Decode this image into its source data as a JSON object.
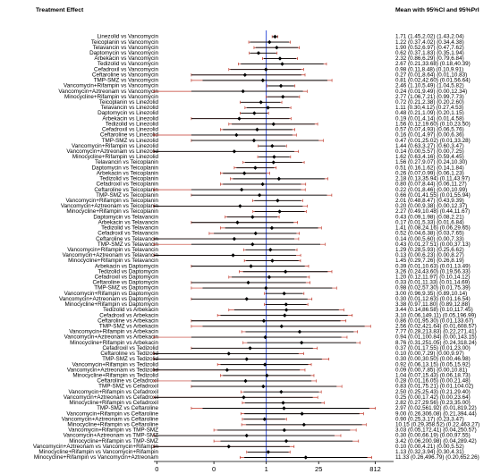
{
  "chart_data": {
    "type": "forest",
    "title": "Treatment Effect",
    "value_header": "Mean with 95%CI and 95%PrI",
    "log_scale": true,
    "xlim": [
      0.001,
      2500
    ],
    "xticks": [
      {
        "value": 0.0012,
        "label": "0"
      },
      {
        "value": 0.04,
        "label": "0"
      },
      1,
      25,
      812
    ],
    "reference": 1,
    "ci_color": "#000000",
    "pri_color": "#c0392b",
    "reference_color": "#1f3fd6",
    "categories": [
      "Linezolid vs Vancomycin",
      "Teicoplanin vs Vancomycin",
      "Telavancin vs Vancomycin",
      "Daptomycin vs Vancomycin",
      "Arbekacin vs Vancomycin",
      "Tedizolid vs Vancomycin",
      "Cefadroxil vs Vancomycin",
      "Ceftaroline vs Vancomycin",
      "TMP-SMZ vs Vancomycin",
      "Vancomycin+Rifampin vs Vancomycin",
      "Vancomycin+Aztreonam vs Vancomycin",
      "Minocycline+Rifampin vs Vancomycin",
      "Teicoplanin vs Linezolid",
      "Telavancin vs Linezolid",
      "Daptomycin vs Linezolid",
      "Arbekacin vs Linezolid",
      "Tedizolid vs Linezolid",
      "Cefadroxil vs Linezolid",
      "Ceftaroline vs Linezolid",
      "TMP-SMZ vs Linezolid",
      "Vancomycin+Rifampin vs Linezolid",
      "Vancomycin+Aztreonam vs Linezolid",
      "Minocycline+Rifampin vs Linezolid",
      "Telavancin vs Teicoplanin",
      "Daptomycin vs Teicoplanin",
      "Arbekacin vs Teicoplanin",
      "Tedizolid vs Teicoplanin",
      "Cefadroxil vs Teicoplanin",
      "Ceftaroline vs Teicoplanin",
      "TMP-SMZ vs Teicoplanin",
      "Vancomycin+Rifampin vs Teicoplanin",
      "Vancomycin+Aztreonam vs Teicoplanin",
      "Minocycline+Rifampin vs Teicoplanin",
      "Daptomycin vs Telavancin",
      "Arbekacin vs Telavancin",
      "Tedizolid vs Telavancin",
      "Cefadroxil vs Telavancin",
      "Ceftaroline vs Telavancin",
      "TMP-SMZ vs Telavancin",
      "Vancomycin+Rifampin vs Telavancin",
      "Vancomycin+Aztreonam vs Telavancin",
      "Minocycline+Rifampin vs Telavancin",
      "Arbekacin vs Daptomycin",
      "Tedizolid vs Daptomycin",
      "Cefadroxil vs Daptomycin",
      "Ceftaroline vs Daptomycin",
      "TMP-SMZ vs Daptomycin",
      "Vancomycin+Rifampin vs Daptomycin",
      "Vancomycin+Aztreonam vs Daptomycin",
      "Minocycline+Rifampin vs Daptomycin",
      "Tedizolid vs Arbekacin",
      "Cefadroxil vs Arbekacin",
      "Ceftaroline vs Arbekacin",
      "TMP-SMZ vs Arbekacin",
      "Vancomycin+Rifampin vs Arbekacin",
      "Vancomycin+Aztreonam vs Arbekacin",
      "Minocycline+Rifampin vs Arbekacin",
      "Cefadroxil vs Tedizolid",
      "Ceftaroline vs Tedizolid",
      "TMP-SMZ vs Tedizolid",
      "Vancomycin+Rifampin vs Tedizolid",
      "Vancomycin+Aztreonam vs Tedizolid",
      "Minocycline+Rifampin vs Tedizolid",
      "Ceftaroline vs Cefadroxil",
      "TMP-SMZ vs Cefadroxil",
      "Vancomycin+Rifampin vs Cefadroxil",
      "Vancomycin+Aztreonam vs Cefadroxil",
      "Minocycline+Rifampin vs Cefadroxil",
      "TMP-SMZ vs Ceftaroline",
      "Vancomycin+Rifampin vs Ceftaroline",
      "Vancomycin+Aztreonam vs Ceftaroline",
      "Minocycline+Rifampin vs Ceftaroline",
      "Vancomycin+Rifampin vs TMP-SMZ",
      "Vancomycin+Aztreonam vs TMP-SMZ",
      "Minocycline+Rifampin vs TMP-SMZ",
      "Vancomycin+Aztreonam vs Vancomycin+Rifampin",
      "Minocycline+Rifampin vs Vancomycin+Rifampin",
      "Minocycline+Rifampin vs Vancomycin+Aztreonam"
    ],
    "values": [
      1.71,
      1.22,
      1.9,
      0.62,
      2.32,
      2.67,
      0.98,
      0.27,
      0.81,
      2.46,
      0.24,
      2.77,
      0.72,
      1.11,
      0.48,
      0.19,
      1.56,
      0.57,
      0.16,
      0.47,
      1.44,
      0.14,
      1.62,
      1.56,
      0.51,
      0.26,
      2.18,
      0.8,
      0.22,
      0.66,
      2.01,
      0.2,
      2.27,
      0.43,
      0.17,
      1.41,
      0.52,
      0.14,
      0.43,
      1.29,
      0.13,
      1.45,
      0.39,
      3.26,
      1.2,
      0.33,
      0.98,
      3.0,
      0.3,
      3.38,
      3.44,
      3.1,
      0.86,
      2.56,
      7.77,
      0.94,
      8.76,
      0.37,
      0.1,
      0.3,
      0.92,
      0.09,
      1.04,
      0.28,
      0.83,
      2.5,
      0.25,
      2.82,
      2.97,
      9.0,
      0.9,
      10.15,
      3.03,
      0.3,
      3.42,
      0.1,
      1.13,
      11.33
    ],
    "ci_lower": [
      1.45,
      0.37,
      0.52,
      0.37,
      0.86,
      0.21,
      0.11,
      0.01,
      0.02,
      1.1,
      0.01,
      1.06,
      0.21,
      0.3,
      0.21,
      0.01,
      0.12,
      0.07,
      0.01,
      0.01,
      0.63,
      0.0,
      0.63,
      0.27,
      0.16,
      0.07,
      0.13,
      0.07,
      0.01,
      0.01,
      0.48,
      0.0,
      0.49,
      0.09,
      0.01,
      0.08,
      0.04,
      0.0,
      0.01,
      0.28,
      0.0,
      0.29,
      0.01,
      0.24,
      0.12,
      0.01,
      0.02,
      0.96,
      0.01,
      0.97,
      0.14,
      0.06,
      0.01,
      0.02,
      0.28,
      0.01,
      0.31,
      0.01,
      0.0,
      0.0,
      0.06,
      0.0,
      0.07,
      0.01,
      0.01,
      0.25,
      0.0,
      0.27,
      0.02,
      0.26,
      0.25,
      0.29,
      0.05,
      0.0,
      0.06,
      0.0,
      0.32,
      0.26
    ],
    "ci_upper": [
      2.02,
      4.02,
      6.97,
      1.83,
      6.29,
      33.68,
      8.48,
      8.64,
      42.6,
      5.49,
      9.49,
      7.21,
      2.38,
      4.12,
      1.09,
      4.14,
      19.6,
      4.93,
      4.97,
      25.02,
      3.27,
      5.57,
      4.16,
      9.07,
      1.62,
      0.99,
      35.94,
      8.44,
      8.46,
      41.55,
      8.47,
      9.38,
      10.48,
      1.98,
      5.33,
      24.16,
      6.38,
      5.6,
      27.51,
      5.93,
      6.23,
      7.26,
      10.63,
      43.6,
      11.97,
      11.33,
      57.3,
      9.35,
      12.63,
      11.8,
      86.58,
      149.11,
      95.3,
      421.64,
      213.83,
      100.84,
      251.05,
      17.55,
      7.29,
      30.5,
      13.15,
      7.85,
      15.43,
      16.05,
      75.21,
      25.43,
      17.42,
      29.56,
      561.92,
      306.08,
      3.17,
      358.52,
      172.41,
      66.19,
      200.98,
      4.21,
      3.94,
      496.79
    ],
    "pri_lower": [
      1.43,
      0.34,
      0.47,
      0.35,
      0.79,
      0.18,
      0.1,
      0.01,
      0.01,
      1.04,
      0.0,
      0.99,
      0.2,
      0.27,
      0.2,
      0.01,
      0.1,
      0.06,
      0.0,
      0.01,
      0.6,
      0.0,
      0.59,
      0.24,
      0.14,
      0.06,
      0.11,
      0.06,
      0.0,
      0.01,
      0.43,
      0.0,
      0.44,
      0.08,
      0.01,
      0.06,
      0.03,
      0.0,
      0.0,
      0.25,
      0.0,
      0.26,
      0.01,
      0.19,
      0.1,
      0.01,
      0.01,
      0.89,
      0.01,
      0.89,
      0.1,
      0.05,
      0.01,
      0.01,
      0.22,
      0.0,
      0.24,
      0.01,
      0.0,
      0.0,
      0.05,
      0.0,
      0.06,
      0.0,
      0.01,
      0.21,
      0.0,
      0.23,
      0.01,
      0.21,
      0.23,
      0.22,
      0.04,
      0.0,
      0.04,
      0.0,
      0.3,
      0.2
    ],
    "pri_upper": [
      2.04,
      4.38,
      7.62,
      1.94,
      6.84,
      40.39,
      9.91,
      10.83,
      56.64,
      5.82,
      12.34,
      7.73,
      2.6,
      4.53,
      1.15,
      4.58,
      23.5,
      5.76,
      6.36,
      33.28,
      3.47,
      7.25,
      4.45,
      10.3,
      1.84,
      1.23,
      43.97,
      11.27,
      10.99,
      55.94,
      9.39,
      12.37,
      11.67,
      2.21,
      6.84,
      29.65,
      7.65,
      7.33,
      37.13,
      6.62,
      8.27,
      8.19,
      13.49,
      56.33,
      14.12,
      14.69,
      75.39,
      10.14,
      16.54,
      12.88,
      117.45,
      196.99,
      133.67,
      608.57,
      271.41,
      143.15,
      318.24,
      23.0,
      9.97,
      46.98,
      15.92,
      10.81,
      18.73,
      21.48,
      104.02,
      29.4,
      23.64,
      35.0,
      819.22,
      394.44,
      3.47,
      463.27,
      250.57,
      97.55,
      289.42,
      5.52,
      4.31,
      652.26
    ],
    "value_labels": [
      "1.71 (1.45,2.02) (1.43,2.04)",
      "1.22 (0.37,4.02) (0.34,4.38)",
      "1.90 (0.52,6.97) (0.47,7.62)",
      "0.62 (0.37,1.83) (0.35,1.94)",
      "2.32 (0.86,6.29) (0.79,6.84)",
      "2.67 (0.21,33.68) (0.18,40.39)",
      "0.98 (0.11,8.48) (0.10,9.91)",
      "0.27 (0.01,8.64) (0.01,10.83)",
      "0.81 (0.02,42.60) (0.01,56.64)",
      "2.46 (1.10,5.49) (1.04,5.82)",
      "0.24 (0.01,9.49) (0.00,12.34)",
      "2.77 (1.06,7.21) (0.99,7.73)",
      "0.72 (0.21,2.38) (0.20,2.60)",
      "1.11 (0.30,4.12) (0.27,4.53)",
      "0.48 (0.21,1.09) (0.20,1.15)",
      "0.19 (0.01,4.14) (0.01,4.58)",
      "1.56 (0.12,19.60) (0.10,23.50)",
      "0.57 (0.07,4.93) (0.06,5.76)",
      "0.16 (0.01,4.97) (0.00,6.36)",
      "0.47 (0.01,25.02) (0.01,33.28)",
      "1.44 (0.63,3.27) (0.60,3.47)",
      "0.14 (0.00,5.57) (0.00,7.25)",
      "1.62 (0.63,4.16) (0.59,4.45)",
      "1.56 (0.27,9.07) (0.24,10.30)",
      "0.51 (0.16,1.62) (0.14,1.84)",
      "0.26 (0.07,0.99) (0.06,1.23)",
      "2.18 (0.13,35.94) (0.11,43.97)",
      "0.80 (0.07,8.44) (0.06,11.27)",
      "0.22 (0.01,8.46) (0.00,10.99)",
      "0.66 (0.01,41.55) (0.01,55.94)",
      "2.01 (0.48,8.47) (0.43,9.39)",
      "0.20 (0.00,9.38) (0.00,12.37)",
      "2.27 (0.49,10.48) (0.44,11.67)",
      "0.43 (0.09,1.98) (0.08,2.21)",
      "0.17 (0.01,5.33) (0.01,6.84)",
      "1.41 (0.08,24.16) (0.06,29.65)",
      "0.52 (0.04,6.38) (0.03,7.65)",
      "0.14 (0.00,5.60) (0.00,7.33)",
      "0.43 (0.01,27.51) (0.00,37.13)",
      "1.29 (0.28,5.93) (0.25,6.62)",
      "0.13 (0.00,6.23) (0.00,8.27)",
      "1.45 (0.29,7.26) (0.26,8.19)",
      "0.39 (0.01,10.63) (0.01,13.49)",
      "3.26 (0.24,43.60) (0.19,56.33)",
      "1.20 (0.12,11.97) (0.10,14.12)",
      "0.33 (0.01,11.33) (0.01,14.69)",
      "0.98 (0.02,57.30) (0.01,75.39)",
      "3.00 (0.96,9.35) (0.89,10.14)",
      "0.30 (0.01,12.63) (0.01,16.54)",
      "3.38 (0.97,11.80) (0.89,12.88)",
      "3.44 (0.14,86.58) (0.10,117.45)",
      "3.10 (0.06,149.11) (0.05,196.99)",
      "0.86 (0.01,95.30) (0.01,133.67)",
      "2.56 (0.02,421.64) (0.01,608.57)",
      "7.77 (0.28,213.83) (0.22,271.41)",
      "0.94 (0.01,100.84) (0.00,143.15)",
      "8.76 (0.31,251.05) (0.24,318.24)",
      "0.37 (0.01,17.55) (0.01,23.00)",
      "0.10 (0.00,7.29) (0.00,9.97)",
      "0.30 (0.00,30.50) (0.00,46.98)",
      "0.92 (0.06,13.15) (0.05,15.92)",
      "0.09 (0.00,7.85) (0.00,10.81)",
      "1.04 (0.07,15.43) (0.06,18.73)",
      "0.28 (0.01,16.05) (0.00,21.48)",
      "0.83 (0.01,75.21) (0.01,104.02)",
      "2.50 (0.25,25.43) (0.21,29.40)",
      "0.25 (0.00,17.42) (0.00,23.64)",
      "2.82 (0.27,29.56) (0.23,35.00)",
      "2.97 (0.02,561.92) (0.01,819.22)",
      "9.00 (0.26,306.08) (0.21,394.44)",
      "0.90 (0.25,3.17) (0.23,3.47)",
      "10.15 (0.29,358.52) (0.22,463.27)",
      "3.03 (0.05,172.41) (0.04,250.57)",
      "0.30 (0.00,66.19) (0.00,97.55)",
      "3.42 (0.06,200.98) (0.04,289.42)",
      "0.10 (0.00,4.21) (0.00,5.52)",
      "1.13 (0.32,3.94) (0.30,4.31)",
      "11.33 (0.26,496.79) (0.20,652.26)"
    ]
  }
}
